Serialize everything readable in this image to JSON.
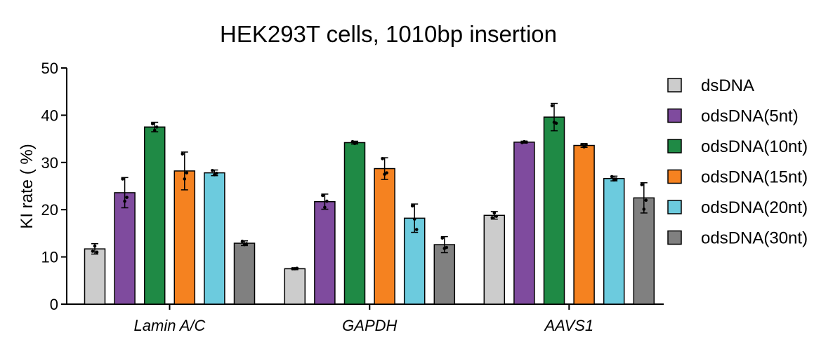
{
  "chart_data": {
    "type": "bar",
    "title": "HEK293T cells, 1010bp insertion",
    "ylabel": "KI rate ( %)",
    "xlabel": "",
    "ylim": [
      0,
      50
    ],
    "yticks": [
      "0",
      "10",
      "20",
      "30",
      "40",
      "50"
    ],
    "categories": [
      "Lamin A/C",
      "GAPDH",
      "AAVS1"
    ],
    "grid": false,
    "legend_position": "right",
    "series": [
      {
        "name": "dsDNA",
        "color": "#cccccc",
        "values": [
          11.7,
          7.5,
          18.8
        ],
        "errors": [
          1.1,
          0.2,
          0.8
        ],
        "points": [
          [
            11.2,
            12.3,
            11.0
          ],
          [
            7.5,
            7.5,
            7.6
          ],
          [
            18.3,
            19.3,
            18.6
          ]
        ]
      },
      {
        "name": "odsDNA(5nt)",
        "color": "#7f4b9e",
        "values": [
          23.6,
          21.7,
          34.3
        ],
        "errors": [
          3.2,
          1.6,
          0.2
        ],
        "points": [
          [
            26.5,
            21.8,
            22.6
          ],
          [
            23.0,
            20.5,
            21.8
          ],
          [
            34.2,
            34.4,
            34.3
          ]
        ]
      },
      {
        "name": "odsDNA(10nt)",
        "color": "#1f8a45",
        "values": [
          37.5,
          34.2,
          39.6
        ],
        "errors": [
          1.0,
          0.3,
          2.9
        ],
        "points": [
          [
            38.2,
            36.8,
            37.5
          ],
          [
            34.4,
            34.0,
            34.2
          ],
          [
            42.0,
            38.5,
            38.3
          ]
        ]
      },
      {
        "name": "odsDNA(15nt)",
        "color": "#f58220",
        "values": [
          28.2,
          28.7,
          33.6
        ],
        "errors": [
          4.0,
          2.3,
          0.4
        ],
        "points": [
          [
            31.8,
            26.5,
            27.8
          ],
          [
            30.8,
            27.5,
            27.8
          ],
          [
            33.8,
            33.3,
            33.7
          ]
        ]
      },
      {
        "name": "odsDNA(20nt)",
        "color": "#6ccbde",
        "values": [
          27.8,
          18.2,
          26.6
        ],
        "errors": [
          0.6,
          3.0,
          0.5
        ],
        "points": [
          [
            28.3,
            27.4,
            27.7
          ],
          [
            20.8,
            18.0,
            15.8
          ],
          [
            27.0,
            26.3,
            26.5
          ]
        ]
      },
      {
        "name": "odsDNA(30nt)",
        "color": "#808080",
        "values": [
          12.9,
          12.6,
          22.5
        ],
        "errors": [
          0.5,
          1.7,
          3.2
        ],
        "points": [
          [
            13.3,
            12.6,
            12.8
          ],
          [
            14.0,
            11.8,
            12.0
          ],
          [
            25.3,
            20.1,
            22.0
          ]
        ]
      }
    ]
  }
}
